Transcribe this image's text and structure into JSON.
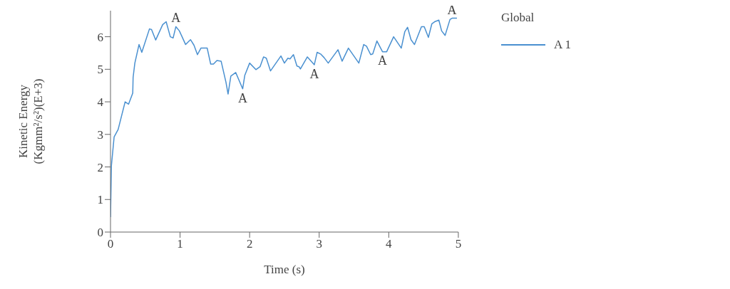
{
  "chart_data": {
    "type": "line",
    "xlabel": "Time (s)",
    "ylabel": "Kinetic Energy\n(Kgmm²/s²)(E+3)",
    "legend_title": "Global",
    "legend": "right",
    "xlim": [
      0,
      5
    ],
    "ylim": [
      0,
      6.8
    ],
    "xticks": [
      0,
      1,
      2,
      3,
      4,
      5
    ],
    "yticks": [
      0,
      1,
      2,
      3,
      4,
      5,
      6
    ],
    "grid": false,
    "marker": "none",
    "line_style": "solid",
    "annotations": [
      {
        "text": "A",
        "x": 0.94,
        "y": 6.31
      },
      {
        "text": "A",
        "x": 1.9,
        "y": 4.4
      },
      {
        "text": "A",
        "x": 2.93,
        "y": 5.14
      },
      {
        "text": "A",
        "x": 3.91,
        "y": 5.54
      },
      {
        "text": "A",
        "x": 4.91,
        "y": 6.57
      }
    ],
    "series": [
      {
        "name": "A 1",
        "color": "#4a90d0",
        "x": [
          0,
          0.013,
          0.052,
          0.11,
          0.21,
          0.26,
          0.32,
          0.325,
          0.35,
          0.41,
          0.45,
          0.56,
          0.59,
          0.65,
          0.75,
          0.8,
          0.86,
          0.9,
          0.94,
          0.99,
          1.08,
          1.15,
          1.2,
          1.25,
          1.3,
          1.39,
          1.44,
          1.48,
          1.53,
          1.59,
          1.66,
          1.69,
          1.73,
          1.8,
          1.84,
          1.9,
          1.93,
          2.0,
          2.09,
          2.15,
          2.2,
          2.24,
          2.3,
          2.45,
          2.5,
          2.55,
          2.58,
          2.63,
          2.68,
          2.71,
          2.73,
          2.83,
          2.93,
          2.97,
          3.02,
          3.07,
          3.13,
          3.27,
          3.33,
          3.42,
          3.57,
          3.64,
          3.68,
          3.74,
          3.77,
          3.83,
          3.91,
          3.97,
          4.07,
          4.18,
          4.23,
          4.27,
          4.32,
          4.37,
          4.47,
          4.51,
          4.57,
          4.62,
          4.66,
          4.72,
          4.76,
          4.81,
          4.88,
          4.91,
          4.98
        ],
        "values": [
          0.46,
          2.04,
          2.92,
          3.15,
          4.0,
          3.93,
          4.27,
          4.75,
          5.19,
          5.76,
          5.52,
          6.24,
          6.22,
          5.9,
          6.37,
          6.46,
          6.0,
          5.96,
          6.31,
          6.18,
          5.76,
          5.91,
          5.74,
          5.45,
          5.65,
          5.65,
          5.16,
          5.16,
          5.27,
          5.25,
          4.6,
          4.24,
          4.79,
          4.9,
          4.7,
          4.4,
          4.81,
          5.19,
          4.99,
          5.08,
          5.38,
          5.34,
          4.95,
          5.41,
          5.19,
          5.34,
          5.32,
          5.45,
          5.1,
          5.08,
          5.01,
          5.38,
          5.14,
          5.52,
          5.47,
          5.36,
          5.19,
          5.6,
          5.25,
          5.65,
          5.19,
          5.76,
          5.71,
          5.45,
          5.47,
          5.87,
          5.54,
          5.54,
          6.0,
          5.65,
          6.15,
          6.29,
          5.91,
          5.76,
          6.31,
          6.31,
          5.98,
          6.4,
          6.46,
          6.51,
          6.18,
          6.04,
          6.53,
          6.57,
          6.57
        ]
      }
    ]
  }
}
